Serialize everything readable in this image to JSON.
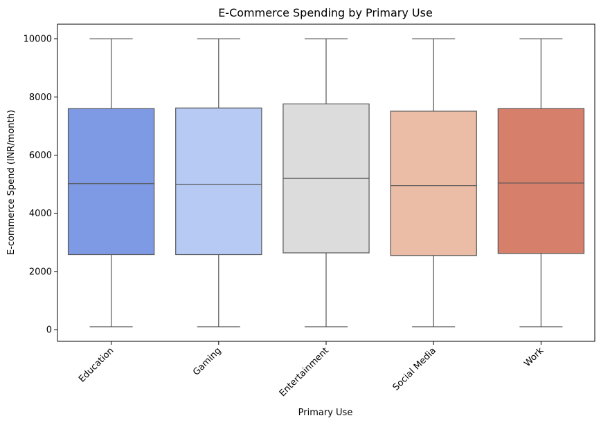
{
  "chart_data": {
    "type": "box",
    "title": "E-Commerce Spending by Primary Use",
    "xlabel": "Primary Use",
    "ylabel": "E-commerce Spend (INR/month)",
    "ylim": [
      -400,
      10500
    ],
    "yticks": [
      0,
      2000,
      4000,
      6000,
      8000,
      10000
    ],
    "categories": [
      "Education",
      "Gaming",
      "Entertainment",
      "Social Media",
      "Work"
    ],
    "boxes": [
      {
        "category": "Education",
        "min": 100,
        "q1": 2580,
        "median": 5020,
        "q3": 7600,
        "max": 10000,
        "color": "#7f9ae4"
      },
      {
        "category": "Gaming",
        "min": 100,
        "q1": 2580,
        "median": 4990,
        "q3": 7620,
        "max": 10000,
        "color": "#b6caf4"
      },
      {
        "category": "Entertainment",
        "min": 100,
        "q1": 2640,
        "median": 5200,
        "q3": 7760,
        "max": 10000,
        "color": "#dcdcdc"
      },
      {
        "category": "Social Media",
        "min": 100,
        "q1": 2550,
        "median": 4950,
        "q3": 7510,
        "max": 10000,
        "color": "#ebbca6"
      },
      {
        "category": "Work",
        "min": 100,
        "q1": 2620,
        "median": 5040,
        "q3": 7600,
        "max": 10000,
        "color": "#d67f6b"
      }
    ],
    "grid": false,
    "legend": "none"
  }
}
